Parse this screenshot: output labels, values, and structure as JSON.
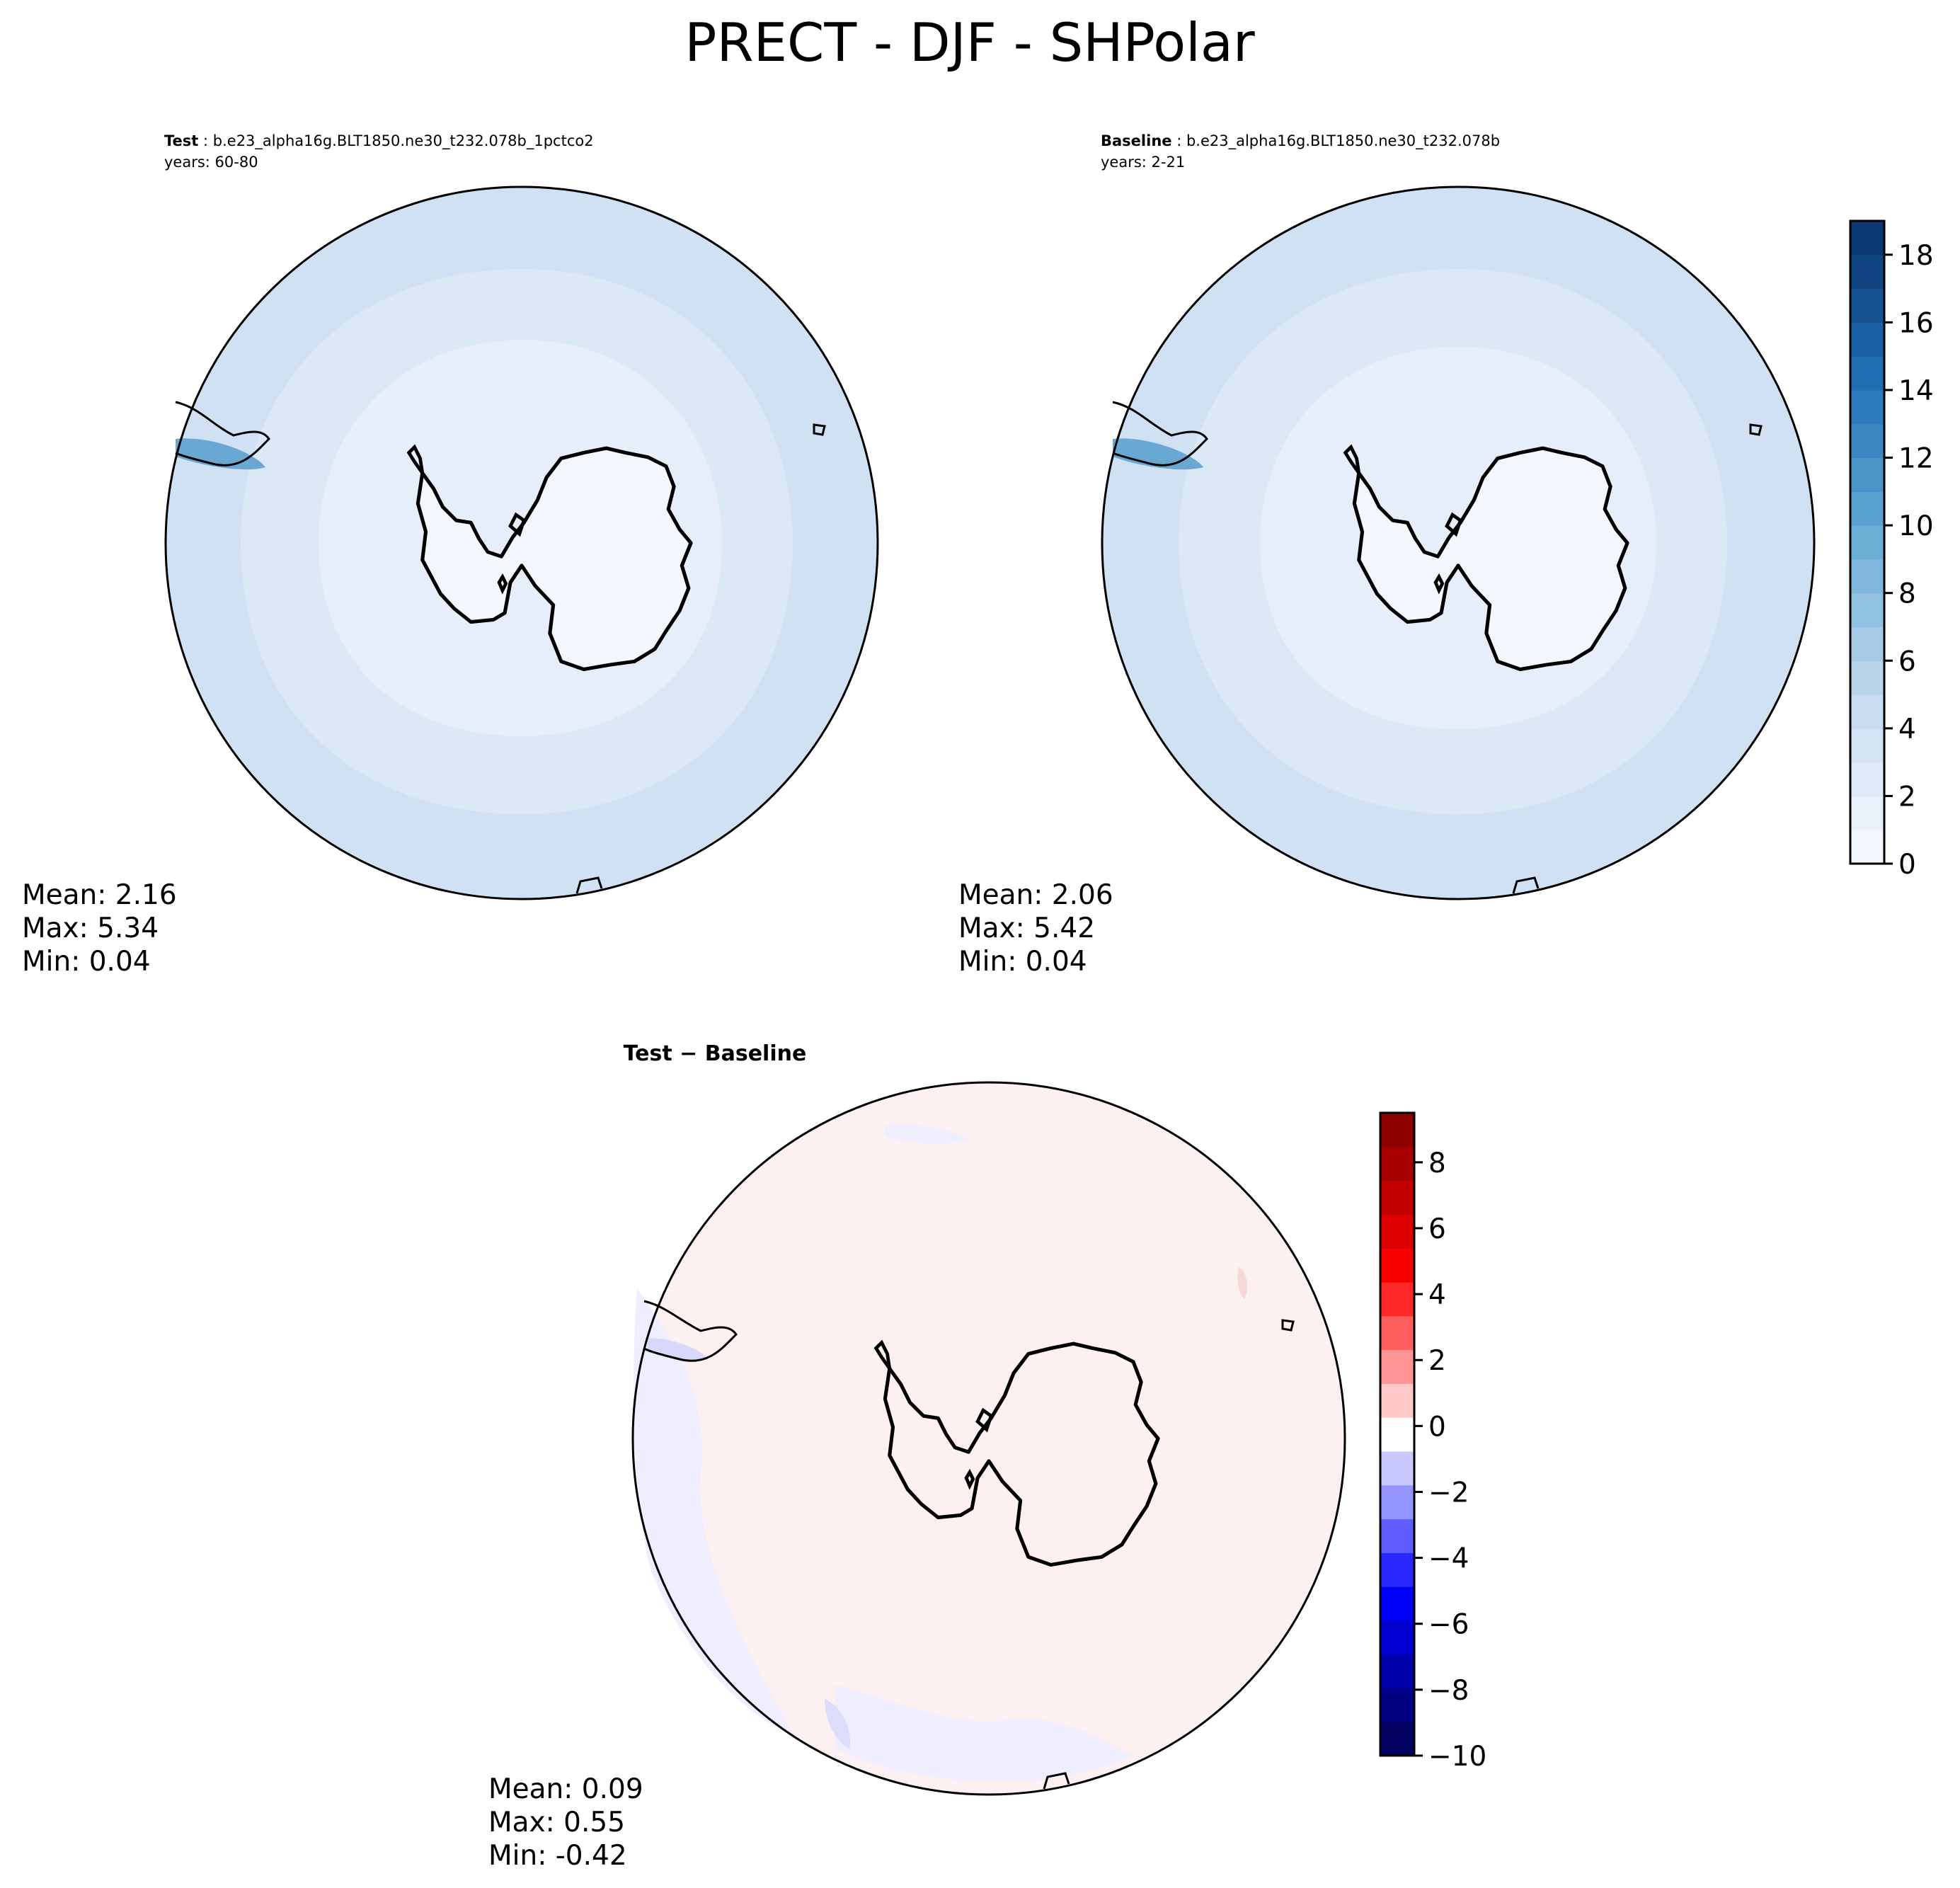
{
  "chart_data": [
    {
      "type": "heatmap",
      "projection": "south-polar-stereographic",
      "figure_title": "PRECT - DJF - SHPolar",
      "panel": "test",
      "label": "Test",
      "case": ": b.e23_alpha16g.BLT1850.ne30_t232.078b_1pctco2",
      "years": "years: 60-80",
      "stats": {
        "mean": "Mean:  2.16",
        "max": "Max:  5.34",
        "min": "Min:  0.04"
      },
      "colormap": "Blues",
      "colorbar": {
        "range": [
          0,
          19
        ],
        "ticks": [
          "0",
          "2",
          "4",
          "6",
          "8",
          "10",
          "12",
          "14",
          "16",
          "18"
        ]
      }
    },
    {
      "type": "heatmap",
      "projection": "south-polar-stereographic",
      "panel": "baseline",
      "label": "Baseline",
      "case": ": b.e23_alpha16g.BLT1850.ne30_t232.078b",
      "years": "years: 2-21",
      "stats": {
        "mean": "Mean:  2.06",
        "max": "Max:  5.42",
        "min": "Min:  0.04"
      },
      "colormap": "Blues",
      "colorbar": {
        "range": [
          0,
          19
        ],
        "ticks": [
          "0",
          "2",
          "4",
          "6",
          "8",
          "10",
          "12",
          "14",
          "16",
          "18"
        ]
      }
    },
    {
      "type": "heatmap",
      "projection": "south-polar-stereographic",
      "panel": "difference",
      "label": "Test − Baseline",
      "stats": {
        "mean": "Mean:  0.09",
        "max": "Max:  0.55",
        "min": "Min: -0.42"
      },
      "colormap": "seismic",
      "colorbar": {
        "range": [
          -10,
          9.5
        ],
        "ticks": [
          "−10",
          "−8",
          "−6",
          "−4",
          "−2",
          "0",
          "2",
          "4",
          "6",
          "8"
        ]
      }
    }
  ],
  "colors": {
    "test_land": "#f2f7fd",
    "test_inner": "#e1ecf8",
    "test_mid": "#d9e7f5",
    "test_outer": "#cfe1f2",
    "diff_pos": "#fdf0f0",
    "diff_neg": "#eeeeff",
    "coast": "#000000"
  }
}
